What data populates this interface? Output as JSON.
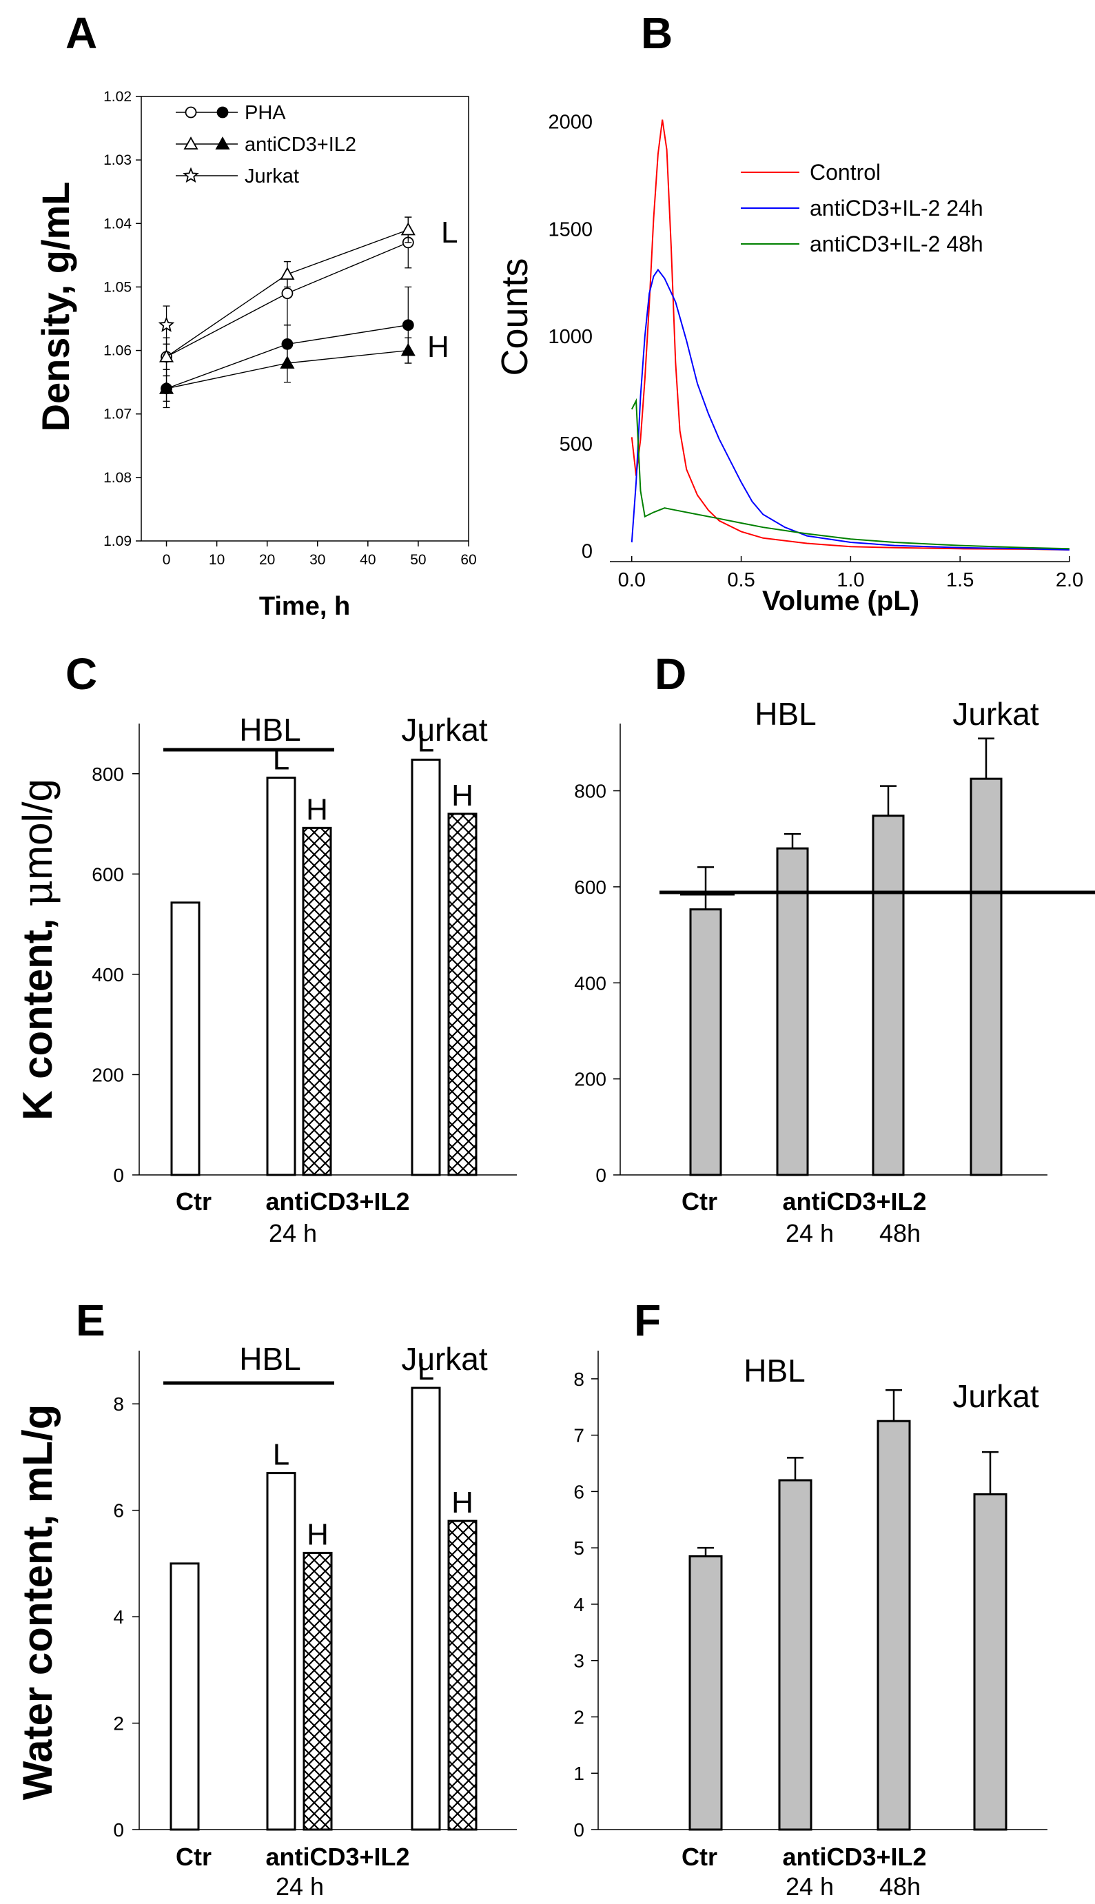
{
  "panels": {
    "A": "A",
    "B": "B",
    "C": "C",
    "D": "D",
    "E": "E",
    "F": "F"
  },
  "chart_data": [
    {
      "id": "A",
      "type": "scatter",
      "title": "",
      "xlabel": "Time,  h",
      "ylabel": "Density, g/mL",
      "xlim": [
        -5,
        60
      ],
      "ylim": [
        1.02,
        1.09
      ],
      "y_inverted": true,
      "xticks": [
        "0",
        "10",
        "20",
        "30",
        "40",
        "50",
        "60"
      ],
      "yticks": [
        "1.02",
        "1.03",
        "1.04",
        "1.05",
        "1.06",
        "1.07",
        "1.08",
        "1.09"
      ],
      "legend": [
        "PHA",
        "antiCD3+IL2",
        "Jurkat"
      ],
      "annotations": [
        "L",
        "H"
      ],
      "series": [
        {
          "name": "PHA L",
          "marker": "circle-open",
          "x": [
            0,
            24,
            48
          ],
          "y": [
            1.061,
            1.051,
            1.043
          ],
          "err": [
            0.002,
            0.005,
            0.004
          ]
        },
        {
          "name": "antiCD3+IL2 L",
          "marker": "triangle-open",
          "x": [
            0,
            24,
            48
          ],
          "y": [
            1.061,
            1.048,
            1.041
          ],
          "err": [
            0.003,
            0.002,
            0.002
          ]
        },
        {
          "name": "PHA H",
          "marker": "circle-filled",
          "x": [
            0,
            24,
            48
          ],
          "y": [
            1.066,
            1.059,
            1.056
          ],
          "err": [
            0.003,
            0.003,
            0.006
          ]
        },
        {
          "name": "antiCD3+IL2 H",
          "marker": "triangle-filled",
          "x": [
            0,
            24,
            48
          ],
          "y": [
            1.066,
            1.062,
            1.06
          ],
          "err": [
            0.002,
            0.003,
            0.002
          ]
        },
        {
          "name": "Jurkat",
          "marker": "star-open",
          "x": [
            0
          ],
          "y": [
            1.056
          ],
          "err": [
            0.003
          ]
        }
      ]
    },
    {
      "id": "B",
      "type": "line",
      "title": "",
      "xlabel": "Volume (pL)",
      "ylabel": "Counts",
      "xlim": [
        -0.1,
        2.0
      ],
      "ylim": [
        -50,
        2150
      ],
      "xticks": [
        "0.0",
        "0.5",
        "1.0",
        "1.5",
        "2.0"
      ],
      "yticks": [
        "0",
        "500",
        "1000",
        "1500",
        "2000"
      ],
      "series": [
        {
          "name": "Control",
          "color": "#ff0000",
          "x": [
            0.0,
            0.02,
            0.04,
            0.06,
            0.08,
            0.1,
            0.12,
            0.14,
            0.16,
            0.18,
            0.2,
            0.22,
            0.25,
            0.3,
            0.35,
            0.4,
            0.5,
            0.6,
            0.8,
            1.0,
            1.2,
            1.5,
            1.8,
            2.0
          ],
          "values": [
            530,
            350,
            520,
            800,
            1150,
            1550,
            1850,
            2010,
            1870,
            1420,
            880,
            560,
            380,
            260,
            190,
            140,
            90,
            60,
            35,
            20,
            15,
            10,
            8,
            5
          ]
        },
        {
          "name": "antiCD3+IL-2 24h",
          "color": "#0000ff",
          "x": [
            0.0,
            0.02,
            0.04,
            0.06,
            0.08,
            0.1,
            0.12,
            0.15,
            0.2,
            0.25,
            0.3,
            0.35,
            0.4,
            0.45,
            0.5,
            0.55,
            0.6,
            0.7,
            0.8,
            1.0,
            1.2,
            1.5,
            1.8,
            2.0
          ],
          "values": [
            40,
            320,
            720,
            1000,
            1200,
            1280,
            1310,
            1270,
            1160,
            980,
            780,
            640,
            520,
            420,
            320,
            230,
            170,
            110,
            70,
            40,
            25,
            15,
            10,
            5
          ]
        },
        {
          "name": "antiCD3+IL-2 48h",
          "color": "#008000",
          "x": [
            0.0,
            0.02,
            0.04,
            0.06,
            0.1,
            0.15,
            0.2,
            0.3,
            0.4,
            0.5,
            0.6,
            0.7,
            0.8,
            1.0,
            1.2,
            1.5,
            1.8,
            2.0
          ],
          "values": [
            660,
            700,
            280,
            160,
            180,
            200,
            190,
            170,
            150,
            130,
            110,
            95,
            80,
            55,
            40,
            25,
            15,
            10
          ]
        }
      ]
    },
    {
      "id": "C",
      "type": "bar",
      "title": "",
      "ylabel": "K content, μmol/g",
      "ylabel_prefix": "K content, ",
      "ylabel_symbol": "μ",
      "ylabel_suffix": "mol/g",
      "ylim": [
        0,
        900
      ],
      "yticks": [
        "0",
        "200",
        "400",
        "600",
        "800"
      ],
      "group_labels": [
        "HBL",
        "Jurkat"
      ],
      "xlabels_bold": [
        "Ctr",
        "antiCD3+IL2"
      ],
      "xlabel_sub": "24 h",
      "bars": [
        {
          "label": "",
          "value": 543,
          "pattern": "open"
        },
        {
          "label": "L",
          "value": 792,
          "pattern": "open"
        },
        {
          "label": "H",
          "value": 692,
          "pattern": "hatch"
        },
        {
          "label": "L",
          "value": 828,
          "pattern": "open"
        },
        {
          "label": "H",
          "value": 720,
          "pattern": "hatch"
        }
      ]
    },
    {
      "id": "D",
      "type": "bar",
      "title": "",
      "ylabel": "",
      "ylim": [
        0,
        940
      ],
      "yticks": [
        "0",
        "200",
        "400",
        "600",
        "800"
      ],
      "group_labels": [
        "HBL",
        "Jurkat"
      ],
      "xlabels_bold": [
        "Ctr",
        "antiCD3+IL2"
      ],
      "xlabel_sub": [
        "24 h",
        "48h"
      ],
      "categories": [
        "Ctr",
        "24 h",
        "48h",
        "Jurkat"
      ],
      "values": [
        553,
        680,
        748,
        825
      ],
      "errors": [
        88,
        30,
        62,
        84
      ]
    },
    {
      "id": "E",
      "type": "bar",
      "title": "",
      "ylabel": "Water content, mL/g",
      "ylim": [
        0,
        9
      ],
      "yticks": [
        "0",
        "2",
        "4",
        "6",
        "8"
      ],
      "group_labels": [
        "HBL",
        "Jurkat"
      ],
      "xlabels_bold": [
        "Ctr",
        "antiCD3+IL2"
      ],
      "xlabel_sub": "24 h",
      "bars": [
        {
          "label": "",
          "value": 5.0,
          "pattern": "open"
        },
        {
          "label": "L",
          "value": 6.7,
          "pattern": "open"
        },
        {
          "label": "H",
          "value": 5.2,
          "pattern": "hatch"
        },
        {
          "label": "L",
          "value": 8.3,
          "pattern": "open"
        },
        {
          "label": "H",
          "value": 5.8,
          "pattern": "hatch"
        }
      ]
    },
    {
      "id": "F",
      "type": "bar",
      "title": "",
      "ylabel": "",
      "ylim": [
        0,
        8.5
      ],
      "yticks": [
        "0",
        "1",
        "2",
        "3",
        "4",
        "5",
        "6",
        "7",
        "8"
      ],
      "group_labels": [
        "HBL",
        "Jurkat"
      ],
      "xlabels_bold": [
        "Ctr",
        "antiCD3+IL2"
      ],
      "xlabel_sub": [
        "24 h",
        "48h"
      ],
      "categories": [
        "Ctr",
        "24 h",
        "48h",
        "Jurkat"
      ],
      "values": [
        4.85,
        6.2,
        7.25,
        5.95
      ],
      "errors": [
        0.15,
        0.4,
        0.55,
        0.75
      ]
    }
  ]
}
